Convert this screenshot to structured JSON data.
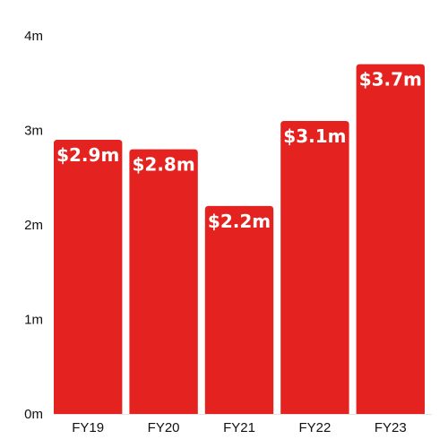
{
  "chart_data": {
    "type": "bar",
    "categories": [
      "FY19",
      "FY20",
      "FY21",
      "FY22",
      "FY23"
    ],
    "values": [
      2.9,
      2.8,
      2.2,
      3.1,
      3.7
    ],
    "data_labels": [
      "$2.9m",
      "$2.8m",
      "$2.2m",
      "$3.1m",
      "$3.7m"
    ],
    "ylim": [
      0,
      4
    ],
    "yticks": [
      0,
      1,
      2,
      3,
      4
    ],
    "ytick_labels": [
      "0m",
      "1m",
      "2m",
      "3m",
      "4m"
    ],
    "title": "",
    "xlabel": "",
    "ylabel": "",
    "grid": false,
    "colors": {
      "bar": "#e42320",
      "axis": "#e5e5e5"
    }
  }
}
